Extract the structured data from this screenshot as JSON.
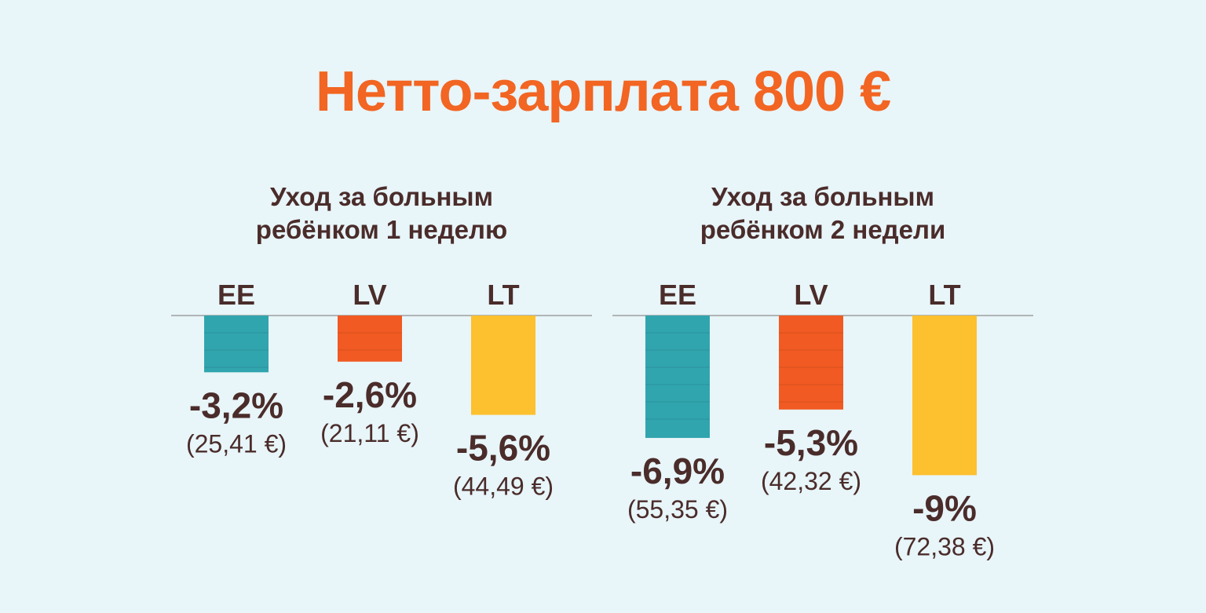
{
  "title": "Нетто-зарплата 800 €",
  "colors": {
    "EE": "#31a5ae",
    "LV": "#f15a22",
    "LT": "#fdc02e",
    "title": "#f26522",
    "text": "#4a2c2a"
  },
  "chart_data": [
    {
      "type": "bar",
      "title": "Уход за больным ребёнком 1 неделю",
      "title_lines": [
        "Уход за больным",
        "ребёнком 1 неделю"
      ],
      "categories": [
        "EE",
        "LV",
        "LT"
      ],
      "values": [
        -3.2,
        -2.6,
        -5.6
      ],
      "value_labels": [
        "-3,2%",
        "-2,6%",
        "-5,6%"
      ],
      "amount_labels": [
        "(25,41 €)",
        "(21,11 €)",
        "(44,49 €)"
      ],
      "ylim": [
        -9,
        0
      ]
    },
    {
      "type": "bar",
      "title": "Уход за больным ребёнком 2 недели",
      "title_lines": [
        "Уход за больным",
        "ребёнком 2 недели"
      ],
      "categories": [
        "EE",
        "LV",
        "LT"
      ],
      "values": [
        -6.9,
        -5.3,
        -9
      ],
      "value_labels": [
        "-6,9%",
        "-5,3%",
        "-9%"
      ],
      "amount_labels": [
        "(55,35 €)",
        "(42,32 €)",
        "(72,38 €)"
      ],
      "ylim": [
        -9,
        0
      ]
    }
  ]
}
